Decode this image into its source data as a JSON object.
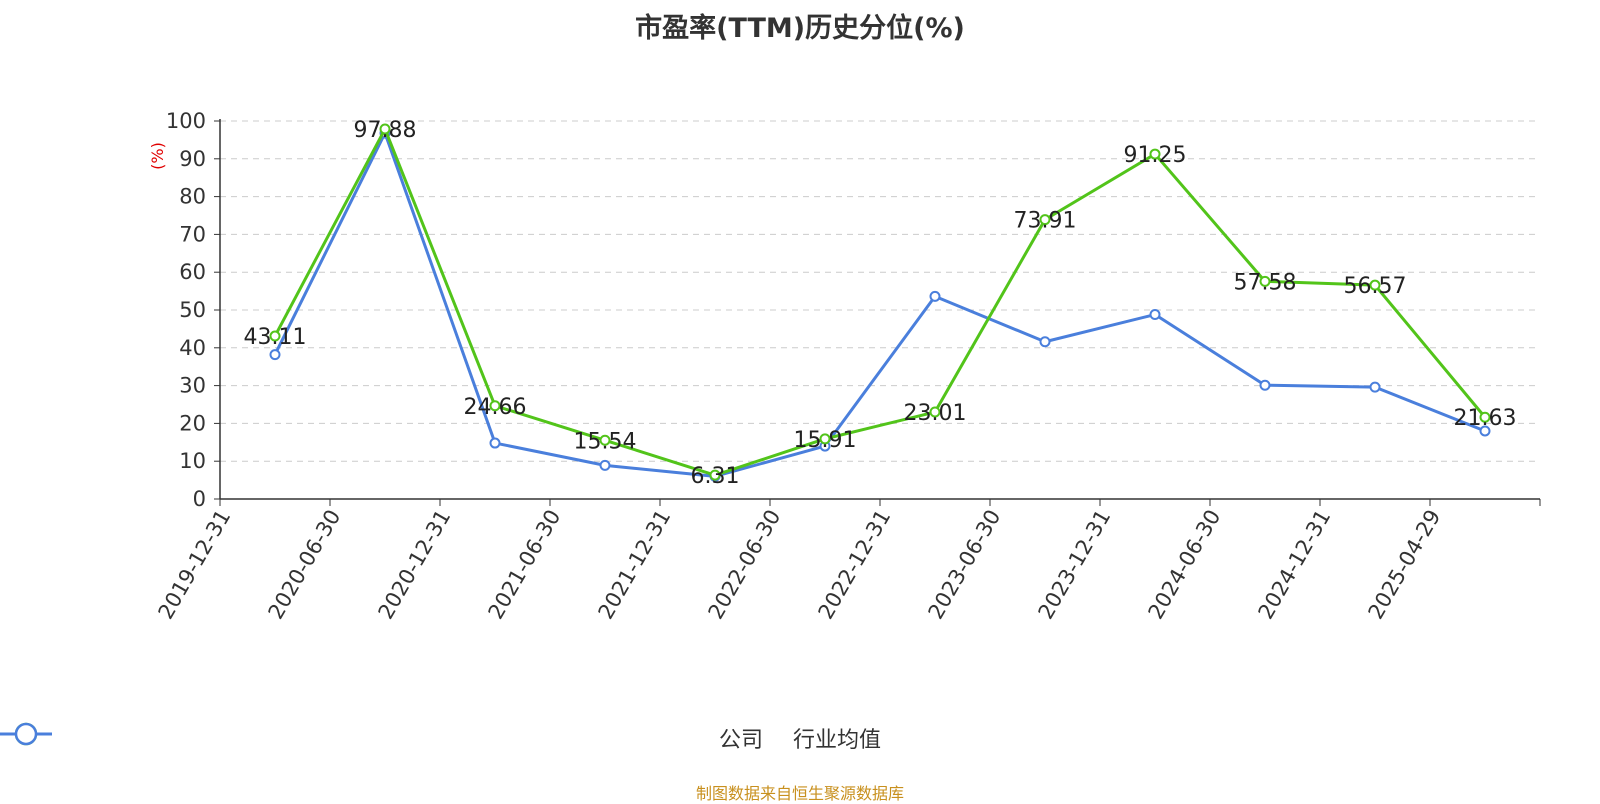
{
  "chart_data": {
    "type": "line",
    "title": "市盈率(TTM)历史分位(%)",
    "ylabel": "(%)",
    "xlabel": "",
    "categories": [
      "2019-12-31",
      "2020-06-30",
      "2020-12-31",
      "2021-06-30",
      "2021-12-31",
      "2022-06-30",
      "2022-12-31",
      "2023-06-30",
      "2023-12-31",
      "2024-06-30",
      "2024-12-31",
      "2025-04-29"
    ],
    "ylim": [
      0,
      100
    ],
    "yticks": [
      "0",
      "10",
      "20",
      "30",
      "40",
      "50",
      "60",
      "70",
      "80",
      "90",
      "100"
    ],
    "grid": true,
    "legend_position": "bottom",
    "series": [
      {
        "name": "公司",
        "color": "#52c41a",
        "values": [
          43.11,
          97.88,
          24.66,
          15.54,
          6.31,
          15.91,
          23.01,
          73.91,
          91.25,
          57.58,
          56.57,
          21.63
        ],
        "labels": [
          "43.11",
          "97.88",
          "24.66",
          "15.54",
          "6.31",
          "15.91",
          "23.01",
          "73.91",
          "91.25",
          "57.58",
          "56.57",
          "21.63"
        ]
      },
      {
        "name": "行业均值",
        "color": "#4a7fdc",
        "values": [
          38.2,
          96.8,
          14.8,
          8.9,
          6.0,
          14.0,
          53.6,
          41.6,
          48.8,
          30.1,
          29.6,
          18.0
        ]
      }
    ],
    "source": "制图数据来自恒生聚源数据库"
  }
}
